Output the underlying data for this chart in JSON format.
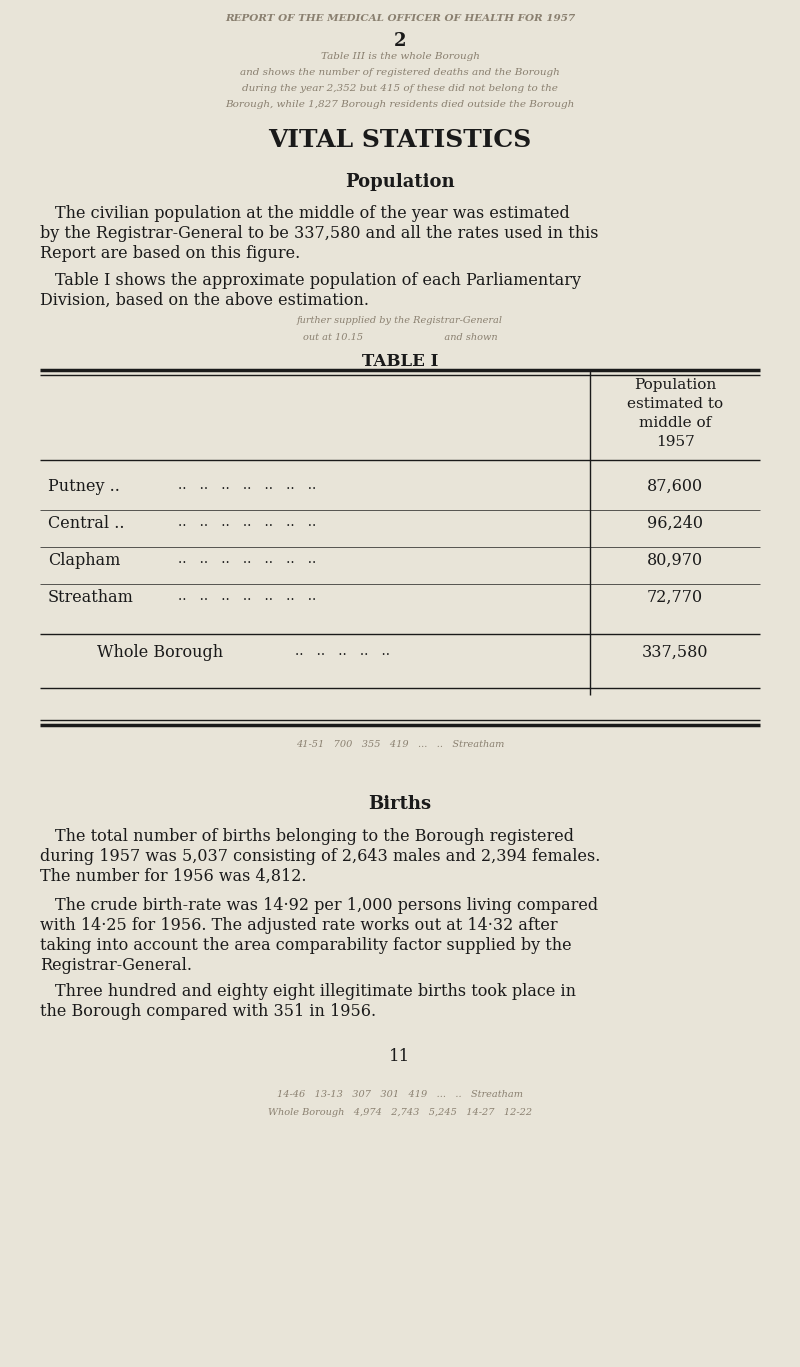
{
  "bg_color": "#e8e4d8",
  "text_color": "#1a1a1a",
  "faded_text_color": "#8a8070",
  "page_number_top": "2",
  "title": "VITAL STATISTICS",
  "section1_heading": "Population",
  "table_title": "TABLE I",
  "table_header": "Population\nestimated to\nmiddle of\n1957",
  "table_row_names": [
    "Putney ..",
    "Central ..",
    "Clapham",
    "Streatham"
  ],
  "table_row_values": [
    "87,600",
    "96,240",
    "80,970",
    "72,770"
  ],
  "table_footer_label": "Whole Borough",
  "table_footer_value": "337,580",
  "section2_heading": "Births",
  "page_number_bottom": "11",
  "para1_lines": [
    "The civilian population at the middle of the year was estimated",
    "by the Registrar-General to be 337,580 and all the rates used in this",
    "Report are based on this figure."
  ],
  "para2_lines": [
    "Table I shows the approximate population of each Parliamentary",
    "Division, based on the above estimation."
  ],
  "births_para1_lines": [
    "The total number of births belonging to the Borough registered",
    "during 1957 was 5,037 consisting of 2,643 males and 2,394 females.",
    "The number for 1956 was 4,812."
  ],
  "births_para2_lines": [
    "The crude birth-rate was 14·92 per 1,000 persons living compared",
    "with 14·25 for 1956. The adjusted rate works out at 14·32 after",
    "taking into account the area comparability factor supplied by the",
    "Registrar-General."
  ],
  "births_para3_lines": [
    "Three hundred and eighty eight illegitimate births took place in",
    "the Borough compared with 351 in 1956."
  ],
  "faded_header": "REPORT OF THE MEDICAL OFFICER OF HEALTH FOR 1957",
  "faded_back_lines_top": [
    "Table III is the whole Borough",
    "and shows the number of registered deaths and the Borough",
    "during the year 2,352 but 415 of these did not belong to the",
    "Borough, while 1,827 Borough residents died outside the Borough"
  ],
  "faded_table_lines": [
    "further supplied by the Registrar-General",
    "out at 10.15                          and shown"
  ],
  "faded_below_table": "41-51   700   355   419   ...   ..   Streatham",
  "faded_bottom_lines": [
    "14-46   13-13   307   301   419   ...   ..   Streatham",
    "Whole Borough   4,974   2,743   5,245   14-27   12-22"
  ]
}
